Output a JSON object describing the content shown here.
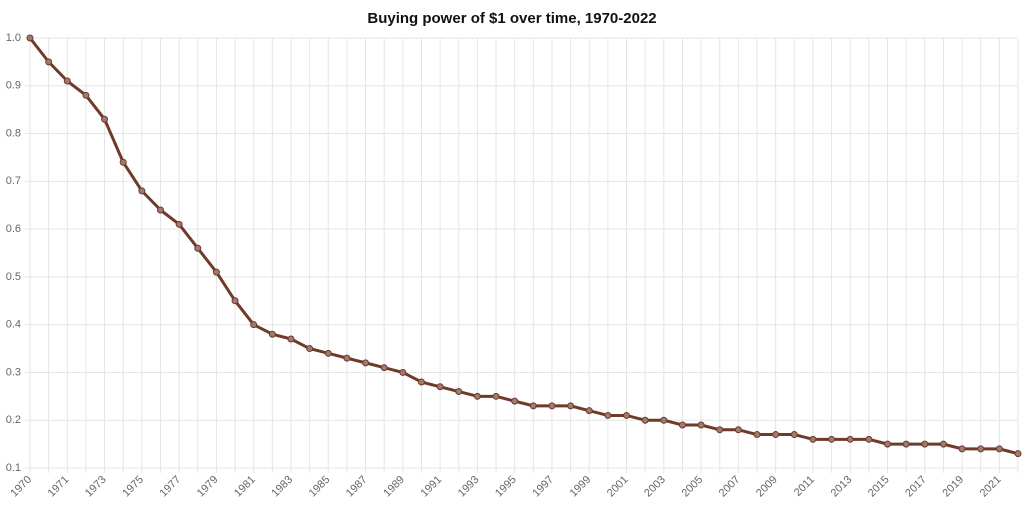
{
  "chart_data": {
    "type": "line",
    "title": "Buying power of $1 over time, 1970-2022",
    "categories": [
      "1970",
      null,
      "1971",
      null,
      "1973",
      null,
      "1975",
      null,
      "1977",
      null,
      "1979",
      null,
      "1981",
      null,
      "1983",
      null,
      "1985",
      null,
      "1987",
      null,
      "1989",
      null,
      "1991",
      null,
      "1993",
      null,
      "1995",
      null,
      "1997",
      null,
      "1999",
      null,
      "2001",
      null,
      "2003",
      null,
      "2005",
      null,
      "2007",
      null,
      "2009",
      null,
      "2011",
      null,
      "2013",
      null,
      "2015",
      null,
      "2017",
      null,
      "2019",
      null,
      "2021",
      null
    ],
    "values": [
      1.0,
      0.95,
      0.91,
      0.88,
      0.83,
      0.74,
      0.68,
      0.64,
      0.61,
      0.56,
      0.51,
      0.45,
      0.4,
      0.38,
      0.37,
      0.35,
      0.34,
      0.33,
      0.32,
      0.31,
      0.3,
      0.28,
      0.27,
      0.26,
      0.25,
      0.25,
      0.24,
      0.23,
      0.23,
      0.23,
      0.22,
      0.21,
      0.21,
      0.2,
      0.2,
      0.19,
      0.19,
      0.18,
      0.18,
      0.17,
      0.17,
      0.17,
      0.16,
      0.16,
      0.16,
      0.16,
      0.15,
      0.15,
      0.15,
      0.15,
      0.14,
      0.14,
      0.14,
      0.13
    ],
    "color": "#6e3b2a",
    "ylim": [
      0.1,
      1.0
    ],
    "yticks": [
      0.1,
      0.2,
      0.3,
      0.4,
      0.5,
      0.6,
      0.7,
      0.8,
      0.9,
      {
        "value": 1,
        "label": "1.0"
      }
    ],
    "grid": true
  }
}
